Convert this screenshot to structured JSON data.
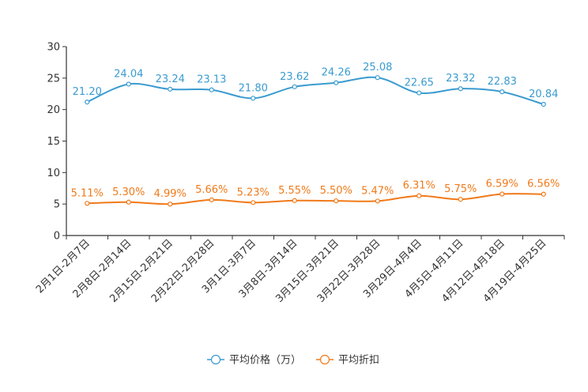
{
  "chart_data": {
    "type": "line",
    "title": "",
    "xlabel": "",
    "ylabel": "",
    "ylim": [
      0,
      30
    ],
    "yticks": [
      0,
      5,
      10,
      15,
      20,
      25,
      30
    ],
    "categories": [
      "2月1日-2月7日",
      "2月8日-2月14日",
      "2月15日-2月21日",
      "2月22日-2月28日",
      "3月1日-3月7日",
      "3月8日-3月14日",
      "3月15日-3月21日",
      "3月22日-3月28日",
      "3月29日-4月4日",
      "4月5日-4月11日",
      "4月12日-4月18日",
      "4月19日-4月25日"
    ],
    "series": [
      {
        "name": "平均价格（万）",
        "color": "#3a9bd0",
        "values": [
          21.2,
          24.04,
          23.24,
          23.13,
          21.8,
          23.62,
          24.26,
          25.08,
          22.65,
          23.32,
          22.83,
          20.84
        ],
        "labels": [
          "21.20",
          "24.04",
          "23.24",
          "23.13",
          "21.80",
          "23.62",
          "24.26",
          "25.08",
          "22.65",
          "23.32",
          "22.83",
          "20.84"
        ]
      },
      {
        "name": "平均折扣",
        "color": "#f07a1a",
        "values": [
          5.11,
          5.3,
          4.99,
          5.66,
          5.23,
          5.55,
          5.5,
          5.47,
          6.31,
          5.75,
          6.59,
          6.56
        ],
        "labels": [
          "5.11%",
          "5.30%",
          "4.99%",
          "5.66%",
          "5.23%",
          "5.55%",
          "5.50%",
          "5.47%",
          "6.31%",
          "5.75%",
          "6.59%",
          "6.56%"
        ]
      }
    ],
    "legend": {
      "placement": "bottom-center",
      "entries": [
        "平均价格（万）",
        "平均折扣"
      ]
    },
    "grid": false
  }
}
